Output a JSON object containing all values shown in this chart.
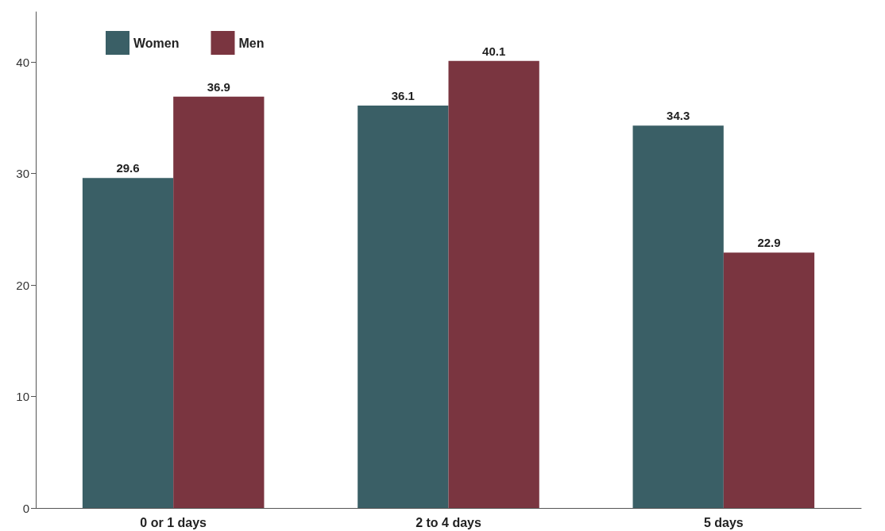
{
  "chart_data": {
    "type": "bar",
    "categories": [
      "0 or 1 days",
      "2 to 4 days",
      "5 days"
    ],
    "series": [
      {
        "name": "Women",
        "color": "#3a5f66",
        "values": [
          29.6,
          36.1,
          34.3
        ]
      },
      {
        "name": "Men",
        "color": "#7a3540",
        "values": [
          36.9,
          40.1,
          22.9
        ]
      }
    ],
    "ylim": [
      0,
      44.5
    ],
    "yticks": [
      0,
      10,
      20,
      30,
      40
    ],
    "data_labels": true,
    "legend": "top left",
    "grid": false
  }
}
